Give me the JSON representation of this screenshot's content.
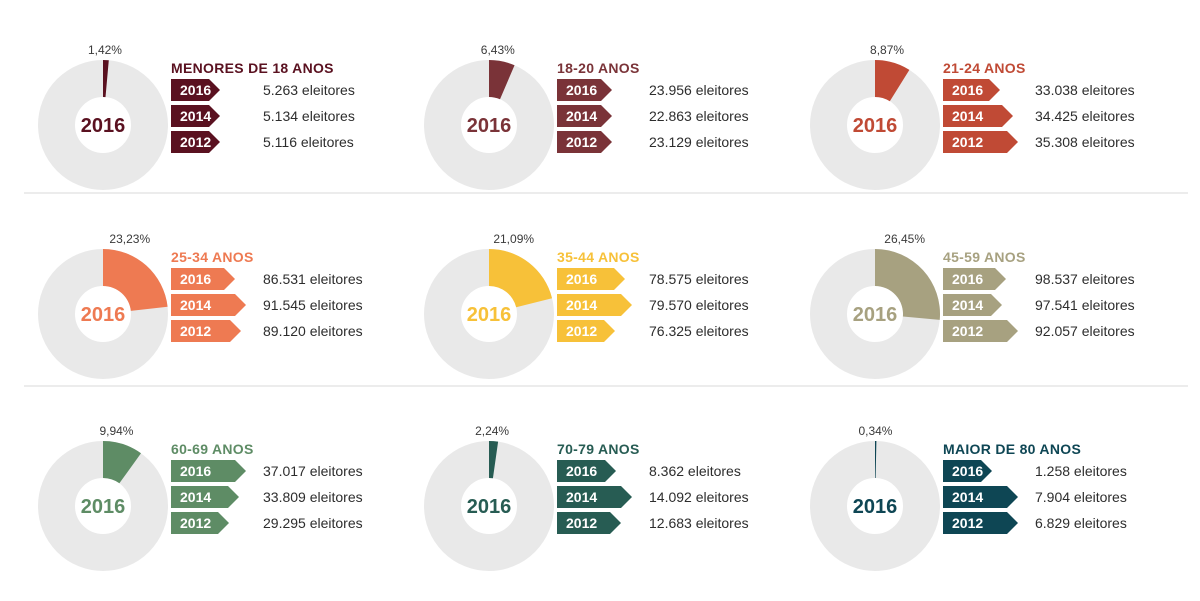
{
  "center_year": "2016",
  "unit_suffix": "eleitores",
  "chart_data": [
    {
      "type": "pie",
      "title": "MENORES DE 18 ANOS",
      "color": "#5a1120",
      "percent": 1.42,
      "percent_label": "1,42%",
      "rows": [
        {
          "year": "2016",
          "value": "5.263",
          "tag": 0.56
        },
        {
          "year": "2014",
          "value": "5.134",
          "tag": 0.56
        },
        {
          "year": "2012",
          "value": "5.116",
          "tag": 0.56
        }
      ]
    },
    {
      "type": "pie",
      "title": "18-20 ANOS",
      "color": "#7a3338",
      "percent": 6.43,
      "percent_label": "6,43%",
      "rows": [
        {
          "year": "2016",
          "value": "23.956",
          "tag": 0.63
        },
        {
          "year": "2014",
          "value": "22.863",
          "tag": 0.63
        },
        {
          "year": "2012",
          "value": "23.129",
          "tag": 0.63
        }
      ]
    },
    {
      "type": "pie",
      "title": "21-24 ANOS",
      "color": "#c04a35",
      "percent": 8.87,
      "percent_label": "8,87%",
      "rows": [
        {
          "year": "2016",
          "value": "33.038",
          "tag": 0.66
        },
        {
          "year": "2014",
          "value": "34.425",
          "tag": 0.8
        },
        {
          "year": "2012",
          "value": "35.308",
          "tag": 0.86
        }
      ]
    },
    {
      "type": "pie",
      "title": "25-34 ANOS",
      "color": "#ee7a52",
      "percent": 23.23,
      "percent_label": "23,23%",
      "rows": [
        {
          "year": "2016",
          "value": "86.531",
          "tag": 0.74
        },
        {
          "year": "2014",
          "value": "91.545",
          "tag": 0.86
        },
        {
          "year": "2012",
          "value": "89.120",
          "tag": 0.81
        }
      ]
    },
    {
      "type": "pie",
      "title": "35-44 ANOS",
      "color": "#f7c139",
      "percent": 21.09,
      "percent_label": "21,09%",
      "rows": [
        {
          "year": "2016",
          "value": "78.575",
          "tag": 0.78
        },
        {
          "year": "2014",
          "value": "79.570",
          "tag": 0.86
        },
        {
          "year": "2012",
          "value": "76.325",
          "tag": 0.67
        }
      ]
    },
    {
      "type": "pie",
      "title": "45-59 ANOS",
      "color": "#a7a180",
      "percent": 26.45,
      "percent_label": "26,45%",
      "rows": [
        {
          "year": "2016",
          "value": "98.537",
          "tag": 0.72
        },
        {
          "year": "2014",
          "value": "97.541",
          "tag": 0.68
        },
        {
          "year": "2012",
          "value": "92.057",
          "tag": 0.86
        }
      ]
    },
    {
      "type": "pie",
      "title": "60-69 ANOS",
      "color": "#5e8c65",
      "percent": 9.94,
      "percent_label": "9,94%",
      "rows": [
        {
          "year": "2016",
          "value": "37.017",
          "tag": 0.86
        },
        {
          "year": "2014",
          "value": "33.809",
          "tag": 0.78
        },
        {
          "year": "2012",
          "value": "29.295",
          "tag": 0.67
        }
      ]
    },
    {
      "type": "pie",
      "title": "70-79 ANOS",
      "color": "#275c53",
      "percent": 2.24,
      "percent_label": "2,24%",
      "rows": [
        {
          "year": "2016",
          "value": "8.362",
          "tag": 0.68
        },
        {
          "year": "2014",
          "value": "14.092",
          "tag": 0.86
        },
        {
          "year": "2012",
          "value": "12.683",
          "tag": 0.74
        }
      ]
    },
    {
      "type": "pie",
      "title": "MAIOR DE 80 ANOS",
      "color": "#0e4654",
      "percent": 0.34,
      "percent_label": "0,34%",
      "rows": [
        {
          "year": "2016",
          "value": "1.258",
          "tag": 0.56
        },
        {
          "year": "2014",
          "value": "7.904",
          "tag": 0.86
        },
        {
          "year": "2012",
          "value": "6.829",
          "tag": 0.86
        }
      ]
    }
  ]
}
